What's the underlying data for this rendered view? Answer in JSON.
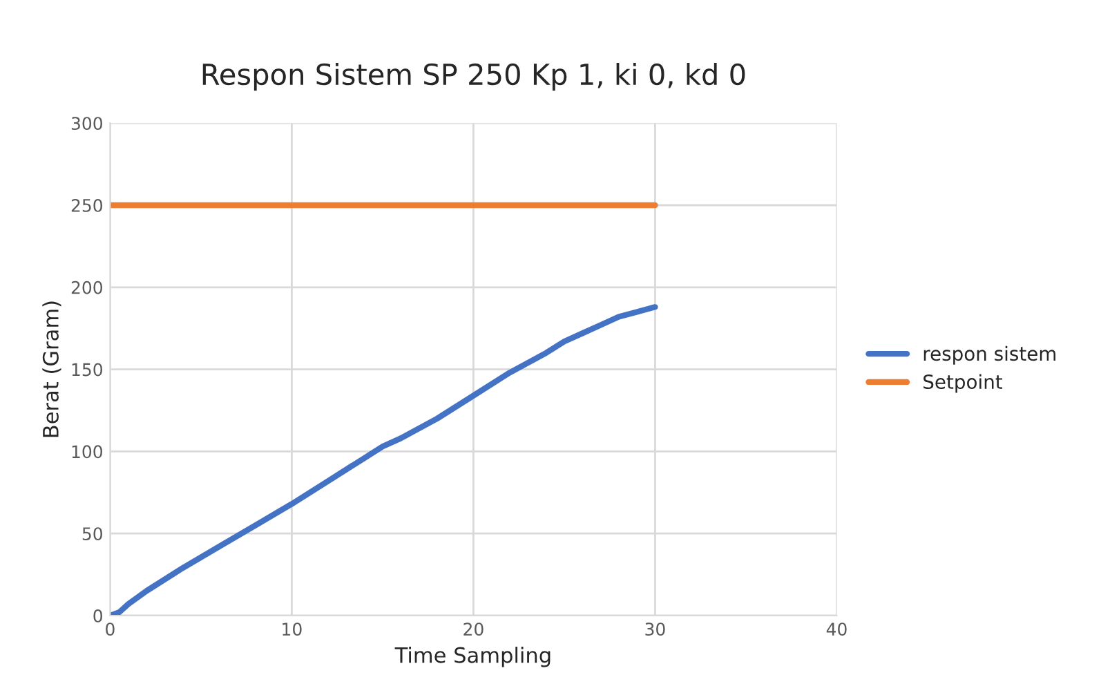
{
  "chart_data": {
    "type": "line",
    "title": "Respon Sistem SP 250 Kp 1, ki 0, kd 0",
    "xlabel": "Time Sampling",
    "ylabel": "Berat (Gram)",
    "series": [
      {
        "name": "respon sistem",
        "color": "#4472c4",
        "x": [
          0,
          0.5,
          1,
          2,
          4,
          6,
          8,
          10,
          12,
          14,
          15,
          16,
          18,
          20,
          22,
          23,
          24,
          25,
          26,
          27,
          28,
          29,
          30
        ],
        "values": [
          0,
          2,
          7,
          15,
          29,
          42,
          55,
          68,
          82,
          96,
          103,
          108,
          120,
          134,
          148,
          154,
          160,
          167,
          172,
          177,
          182,
          185,
          188
        ]
      },
      {
        "name": "Setpoint",
        "color": "#ed7d31",
        "x": [
          0,
          30
        ],
        "values": [
          250,
          250
        ]
      }
    ],
    "xlim": [
      0,
      40
    ],
    "xticks": [
      0,
      10,
      20,
      30,
      40
    ],
    "ylim": [
      0,
      300
    ],
    "yticks": [
      0,
      50,
      100,
      150,
      200,
      250,
      300
    ],
    "grid": true,
    "legend": "right",
    "line_style": "solid",
    "marker": "none"
  }
}
